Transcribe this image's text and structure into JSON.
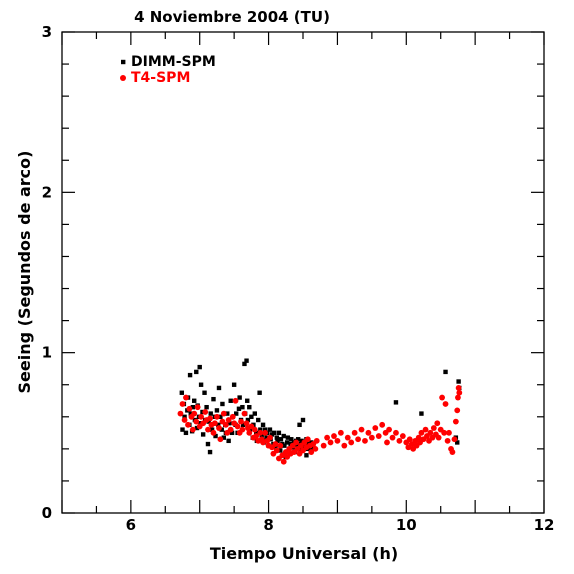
{
  "chart_data": {
    "type": "scatter",
    "title": "4 Noviembre 2004 (TU)",
    "xlabel": "Tiempo Universal (h)",
    "ylabel": "Seeing (Segundos de arco)",
    "xlim": [
      5,
      12
    ],
    "ylim": [
      0,
      3
    ],
    "x_ticks": [
      6,
      8,
      10,
      12
    ],
    "x_tick_labels": [
      "6",
      "8",
      "10",
      "12"
    ],
    "y_ticks": [
      0,
      1,
      2,
      3
    ],
    "y_tick_labels": [
      "0",
      "1",
      "2",
      "3"
    ],
    "legend_position": "top-left",
    "series": [
      {
        "name": "DIMM-SPM",
        "marker": "square",
        "color": "#000000",
        "points": [
          [
            6.74,
            0.75
          ],
          [
            6.75,
            0.52
          ],
          [
            6.77,
            0.68
          ],
          [
            6.78,
            0.6
          ],
          [
            6.8,
            0.5
          ],
          [
            6.82,
            0.64
          ],
          [
            6.83,
            0.72
          ],
          [
            6.85,
            0.55
          ],
          [
            6.86,
            0.86
          ],
          [
            6.87,
            0.62
          ],
          [
            6.89,
            0.51
          ],
          [
            6.9,
            0.66
          ],
          [
            6.92,
            0.7
          ],
          [
            6.93,
            0.58
          ],
          [
            6.95,
            0.88
          ],
          [
            6.96,
            0.53
          ],
          [
            6.97,
            0.67
          ],
          [
            6.99,
            0.6
          ],
          [
            7.0,
            0.91
          ],
          [
            7.01,
            0.56
          ],
          [
            7.02,
            0.8
          ],
          [
            7.04,
            0.63
          ],
          [
            7.05,
            0.49
          ],
          [
            7.07,
            0.75
          ],
          [
            7.08,
            0.58
          ],
          [
            7.1,
            0.66
          ],
          [
            7.12,
            0.43
          ],
          [
            7.13,
            0.57
          ],
          [
            7.15,
            0.38
          ],
          [
            7.16,
            0.62
          ],
          [
            7.18,
            0.52
          ],
          [
            7.2,
            0.71
          ],
          [
            7.22,
            0.6
          ],
          [
            7.23,
            0.48
          ],
          [
            7.25,
            0.64
          ],
          [
            7.27,
            0.55
          ],
          [
            7.28,
            0.78
          ],
          [
            7.3,
            0.6
          ],
          [
            7.32,
            0.52
          ],
          [
            7.33,
            0.68
          ],
          [
            7.35,
            0.47
          ],
          [
            7.37,
            0.55
          ],
          [
            7.38,
            0.5
          ],
          [
            7.4,
            0.62
          ],
          [
            7.42,
            0.45
          ],
          [
            7.43,
            0.56
          ],
          [
            7.45,
            0.7
          ],
          [
            7.47,
            0.5
          ],
          [
            7.48,
            0.6
          ],
          [
            7.5,
            0.8
          ],
          [
            7.52,
            0.55
          ],
          [
            7.53,
            0.62
          ],
          [
            7.55,
            0.5
          ],
          [
            7.57,
            0.65
          ],
          [
            7.58,
            0.72
          ],
          [
            7.6,
            0.58
          ],
          [
            7.62,
            0.66
          ],
          [
            7.63,
            0.55
          ],
          [
            7.65,
            0.93
          ],
          [
            7.66,
            0.62
          ],
          [
            7.68,
            0.95
          ],
          [
            7.69,
            0.7
          ],
          [
            7.7,
            0.58
          ],
          [
            7.72,
            0.66
          ],
          [
            7.73,
            0.52
          ],
          [
            7.75,
            0.6
          ],
          [
            7.77,
            0.47
          ],
          [
            7.78,
            0.55
          ],
          [
            7.8,
            0.62
          ],
          [
            7.82,
            0.5
          ],
          [
            7.83,
            0.45
          ],
          [
            7.85,
            0.58
          ],
          [
            7.87,
            0.75
          ],
          [
            7.88,
            0.52
          ],
          [
            7.9,
            0.48
          ],
          [
            7.92,
            0.55
          ],
          [
            7.93,
            0.44
          ],
          [
            7.95,
            0.52
          ],
          [
            7.97,
            0.47
          ],
          [
            7.98,
            0.5
          ],
          [
            8.0,
            0.42
          ],
          [
            8.02,
            0.52
          ],
          [
            8.03,
            0.46
          ],
          [
            8.05,
            0.49
          ],
          [
            8.07,
            0.43
          ],
          [
            8.08,
            0.5
          ],
          [
            8.1,
            0.41
          ],
          [
            8.12,
            0.47
          ],
          [
            8.13,
            0.45
          ],
          [
            8.15,
            0.5
          ],
          [
            8.17,
            0.39
          ],
          [
            8.18,
            0.46
          ],
          [
            8.2,
            0.43
          ],
          [
            8.22,
            0.48
          ],
          [
            8.23,
            0.42
          ],
          [
            8.25,
            0.35
          ],
          [
            8.27,
            0.44
          ],
          [
            8.28,
            0.47
          ],
          [
            8.3,
            0.4
          ],
          [
            8.32,
            0.43
          ],
          [
            8.33,
            0.46
          ],
          [
            8.35,
            0.41
          ],
          [
            8.37,
            0.44
          ],
          [
            8.38,
            0.38
          ],
          [
            8.4,
            0.45
          ],
          [
            8.42,
            0.42
          ],
          [
            8.43,
            0.46
          ],
          [
            8.45,
            0.4
          ],
          [
            8.47,
            0.43
          ],
          [
            8.48,
            0.45
          ],
          [
            8.5,
            0.41
          ],
          [
            8.52,
            0.44
          ],
          [
            8.53,
            0.42
          ],
          [
            8.55,
            0.46
          ],
          [
            8.57,
            0.4
          ],
          [
            8.58,
            0.43
          ],
          [
            8.6,
            0.41
          ],
          [
            8.62,
            0.44
          ],
          [
            8.63,
            0.4
          ],
          [
            8.65,
            0.42
          ],
          [
            8.5,
            0.58
          ],
          [
            8.45,
            0.55
          ],
          [
            8.55,
            0.36
          ],
          [
            9.85,
            0.69
          ],
          [
            10.22,
            0.62
          ],
          [
            10.57,
            0.88
          ],
          [
            10.72,
            0.47
          ],
          [
            10.74,
            0.44
          ],
          [
            10.76,
            0.82
          ],
          [
            10.77,
            0.78
          ]
        ]
      },
      {
        "name": "T4-SPM",
        "marker": "circle",
        "color": "#ff0000",
        "points": [
          [
            6.72,
            0.62
          ],
          [
            6.75,
            0.68
          ],
          [
            6.78,
            0.58
          ],
          [
            6.8,
            0.72
          ],
          [
            6.83,
            0.55
          ],
          [
            6.85,
            0.65
          ],
          [
            6.88,
            0.6
          ],
          [
            6.9,
            0.52
          ],
          [
            6.92,
            0.62
          ],
          [
            6.95,
            0.57
          ],
          [
            6.97,
            0.66
          ],
          [
            7.0,
            0.54
          ],
          [
            7.02,
            0.6
          ],
          [
            7.05,
            0.56
          ],
          [
            7.08,
            0.63
          ],
          [
            7.1,
            0.58
          ],
          [
            7.12,
            0.52
          ],
          [
            7.15,
            0.59
          ],
          [
            7.17,
            0.55
          ],
          [
            7.2,
            0.5
          ],
          [
            7.22,
            0.56
          ],
          [
            7.25,
            0.6
          ],
          [
            7.28,
            0.53
          ],
          [
            7.3,
            0.46
          ],
          [
            7.33,
            0.57
          ],
          [
            7.35,
            0.62
          ],
          [
            7.38,
            0.55
          ],
          [
            7.4,
            0.5
          ],
          [
            7.42,
            0.58
          ],
          [
            7.45,
            0.52
          ],
          [
            7.48,
            0.6
          ],
          [
            7.5,
            0.56
          ],
          [
            7.52,
            0.7
          ],
          [
            7.55,
            0.54
          ],
          [
            7.58,
            0.5
          ],
          [
            7.6,
            0.57
          ],
          [
            7.62,
            0.52
          ],
          [
            7.65,
            0.62
          ],
          [
            7.68,
            0.56
          ],
          [
            7.7,
            0.53
          ],
          [
            7.72,
            0.5
          ],
          [
            7.75,
            0.54
          ],
          [
            7.78,
            0.47
          ],
          [
            7.8,
            0.52
          ],
          [
            7.82,
            0.48
          ],
          [
            7.85,
            0.45
          ],
          [
            7.88,
            0.5
          ],
          [
            7.9,
            0.46
          ],
          [
            7.92,
            0.44
          ],
          [
            7.95,
            0.5
          ],
          [
            7.98,
            0.45
          ],
          [
            8.0,
            0.42
          ],
          [
            8.02,
            0.47
          ],
          [
            8.05,
            0.41
          ],
          [
            8.07,
            0.37
          ],
          [
            8.1,
            0.43
          ],
          [
            8.12,
            0.39
          ],
          [
            8.15,
            0.34
          ],
          [
            8.17,
            0.42
          ],
          [
            8.2,
            0.36
          ],
          [
            8.22,
            0.32
          ],
          [
            8.25,
            0.38
          ],
          [
            8.27,
            0.35
          ],
          [
            8.3,
            0.4
          ],
          [
            8.32,
            0.37
          ],
          [
            8.35,
            0.42
          ],
          [
            8.37,
            0.38
          ],
          [
            8.4,
            0.44
          ],
          [
            8.42,
            0.4
          ],
          [
            8.45,
            0.37
          ],
          [
            8.47,
            0.42
          ],
          [
            8.5,
            0.39
          ],
          [
            8.52,
            0.44
          ],
          [
            8.55,
            0.41
          ],
          [
            8.57,
            0.46
          ],
          [
            8.6,
            0.42
          ],
          [
            8.62,
            0.38
          ],
          [
            8.65,
            0.43
          ],
          [
            8.68,
            0.4
          ],
          [
            8.7,
            0.45
          ],
          [
            8.8,
            0.42
          ],
          [
            8.85,
            0.47
          ],
          [
            8.9,
            0.44
          ],
          [
            8.95,
            0.48
          ],
          [
            9.0,
            0.45
          ],
          [
            9.05,
            0.5
          ],
          [
            9.1,
            0.42
          ],
          [
            9.15,
            0.47
          ],
          [
            9.2,
            0.44
          ],
          [
            9.25,
            0.5
          ],
          [
            9.3,
            0.46
          ],
          [
            9.35,
            0.52
          ],
          [
            9.4,
            0.45
          ],
          [
            9.45,
            0.5
          ],
          [
            9.5,
            0.47
          ],
          [
            9.55,
            0.53
          ],
          [
            9.6,
            0.48
          ],
          [
            9.65,
            0.55
          ],
          [
            9.7,
            0.5
          ],
          [
            9.72,
            0.44
          ],
          [
            9.75,
            0.52
          ],
          [
            9.8,
            0.47
          ],
          [
            9.85,
            0.5
          ],
          [
            9.9,
            0.45
          ],
          [
            9.95,
            0.48
          ],
          [
            10.0,
            0.44
          ],
          [
            10.03,
            0.41
          ],
          [
            10.05,
            0.46
          ],
          [
            10.08,
            0.43
          ],
          [
            10.1,
            0.4
          ],
          [
            10.13,
            0.45
          ],
          [
            10.15,
            0.42
          ],
          [
            10.18,
            0.47
          ],
          [
            10.2,
            0.44
          ],
          [
            10.22,
            0.5
          ],
          [
            10.25,
            0.46
          ],
          [
            10.28,
            0.52
          ],
          [
            10.3,
            0.48
          ],
          [
            10.33,
            0.45
          ],
          [
            10.35,
            0.5
          ],
          [
            10.38,
            0.47
          ],
          [
            10.4,
            0.53
          ],
          [
            10.43,
            0.49
          ],
          [
            10.45,
            0.56
          ],
          [
            10.47,
            0.47
          ],
          [
            10.5,
            0.52
          ],
          [
            10.52,
            0.72
          ],
          [
            10.55,
            0.5
          ],
          [
            10.57,
            0.68
          ],
          [
            10.6,
            0.45
          ],
          [
            10.62,
            0.5
          ],
          [
            10.65,
            0.4
          ],
          [
            10.67,
            0.38
          ],
          [
            10.7,
            0.46
          ],
          [
            10.72,
            0.57
          ],
          [
            10.74,
            0.64
          ],
          [
            10.75,
            0.72
          ],
          [
            10.76,
            0.78
          ],
          [
            10.77,
            0.75
          ]
        ]
      }
    ]
  }
}
